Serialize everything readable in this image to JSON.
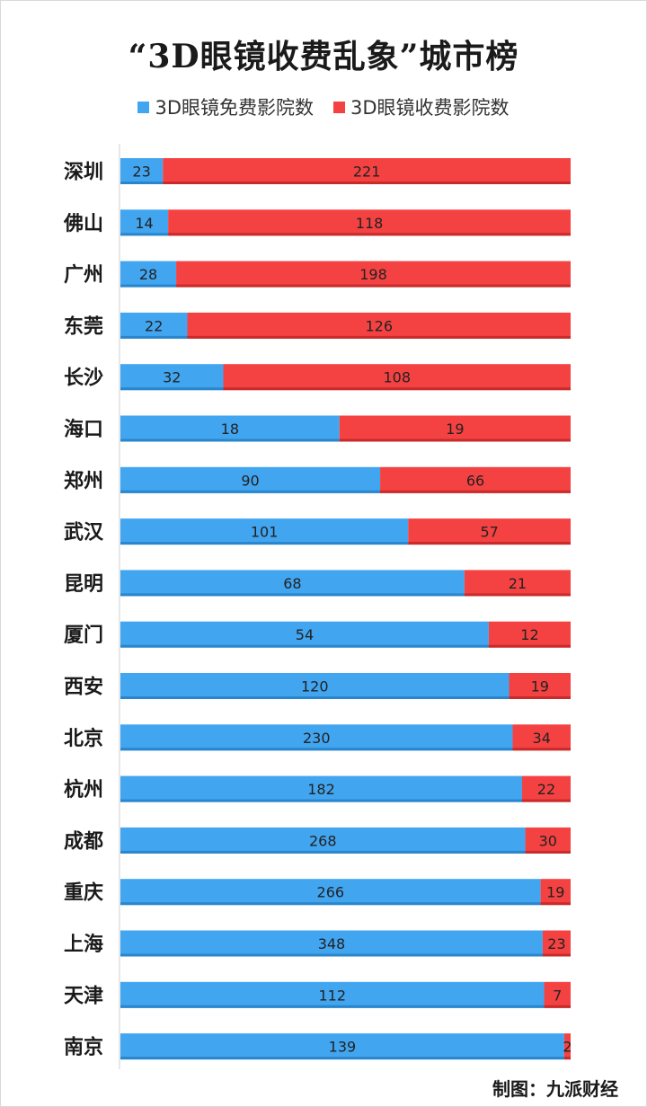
{
  "chart_data": {
    "type": "bar",
    "orientation": "horizontal",
    "stacking": "percent",
    "title": "“3D眼镜收费乱象”城市榜",
    "categories": [
      "深圳",
      "佛山",
      "广州",
      "东莞",
      "长沙",
      "海口",
      "郑州",
      "武汉",
      "昆明",
      "厦门",
      "西安",
      "北京",
      "杭州",
      "成都",
      "重庆",
      "上海",
      "天津",
      "南京"
    ],
    "series": [
      {
        "name": "3D眼镜免费影院数",
        "color": "#42a5f0",
        "values": [
          23,
          14,
          28,
          22,
          32,
          18,
          90,
          101,
          68,
          54,
          120,
          230,
          182,
          268,
          266,
          348,
          112,
          139
        ]
      },
      {
        "name": "3D眼镜收费影院数",
        "color": "#f44242",
        "values": [
          221,
          118,
          198,
          126,
          108,
          19,
          66,
          57,
          21,
          12,
          19,
          34,
          22,
          30,
          19,
          23,
          7,
          2
        ]
      }
    ],
    "legend_position": "top",
    "xlabel": "",
    "ylabel": "",
    "grid": false
  },
  "credit": "制图：九派财经"
}
